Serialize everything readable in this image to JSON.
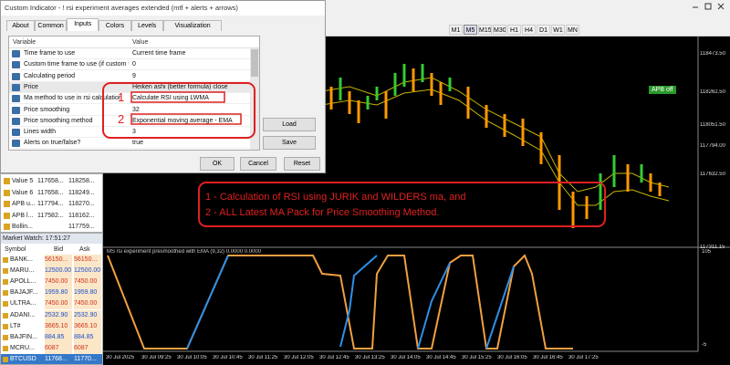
{
  "dialog": {
    "title": "Custom Indicator - ! rsi experiment averages extended (mtf + alerts + arrows)",
    "tabs": [
      "About",
      "Common",
      "Inputs",
      "Colors",
      "Levels",
      "Visualization"
    ],
    "columns": [
      "Variable",
      "Value"
    ],
    "rows": [
      [
        "Time frame to use",
        "Current time frame"
      ],
      [
        "Custom time frame to use (if custom tim...",
        "0"
      ],
      [
        "Calculating period",
        "9"
      ],
      [
        "Price",
        "Heiken ashi (better formula) close"
      ],
      [
        "Ma method to use in rsi calculation",
        "Calculate RSI using LWMA"
      ],
      [
        "Price smoothing",
        "32"
      ],
      [
        "Price smoothing method",
        "Exponential moving average - EMA"
      ],
      [
        "Lines width",
        "3"
      ],
      [
        "Alerts on true/false?",
        "true"
      ]
    ],
    "markers": [
      "1",
      "2"
    ],
    "side_buttons": [
      "Load",
      "Save"
    ],
    "bottom_buttons": [
      "OK",
      "Cancel",
      "Reset"
    ]
  },
  "data_window": {
    "rows": [
      [
        "Value 5",
        "117658...",
        "118258..."
      ],
      [
        "Value 6",
        "117658...",
        "118249..."
      ],
      [
        "APB u...",
        "117794...",
        "118270..."
      ],
      [
        "APB l...",
        "117582...",
        "118162..."
      ],
      [
        "Bollin...",
        "",
        "117759..."
      ]
    ]
  },
  "market_watch": {
    "title": "Market Watch: 17:51:27",
    "columns": [
      "Symbol",
      "Bid",
      "Ask"
    ],
    "rows": [
      [
        "BANK...",
        "56150...",
        "56150..."
      ],
      [
        "MARU...",
        "12500.00",
        "12500.00"
      ],
      [
        "APOLL...",
        "7450.00",
        "7450.00"
      ],
      [
        "BAJAJF...",
        "1959.80",
        "1959.80"
      ],
      [
        "ULTRA...",
        "7450.00",
        "7450.00"
      ],
      [
        "ADANI...",
        "2532.90",
        "2532.90"
      ],
      [
        "LT#",
        "3665.10",
        "3665.10"
      ],
      [
        "BAJFIN...",
        "884.85",
        "884.85"
      ],
      [
        "MCRU...",
        "6087",
        "6087"
      ],
      [
        "BTCUSD",
        "11768...",
        "11770..."
      ]
    ]
  },
  "toolbar": {
    "timeframes": [
      "M1",
      "M5",
      "M15",
      "M30",
      "H1",
      "H4",
      "D1",
      "W1",
      "MN"
    ]
  },
  "chart": {
    "price_labels": [
      "118473.50",
      "118262.50",
      "118051.50",
      "117794.00",
      "117632.50",
      "117311.15"
    ],
    "badge": "APB off",
    "annotation": [
      "1 - Calculation of RSI using JURIK and WILDERS ma, and",
      "2 - ALL Latest MA Pack for Price Smoothing Method."
    ],
    "indicator_title": "MS rsi experiment presmoothed with EMA (9,32) 0.0000 0.0000",
    "indicator_labels": [
      "105",
      "-5"
    ],
    "time_labels": [
      "30 Jul 2025",
      "30 Jul 09:25",
      "30 Jul 10:05",
      "30 Jul 10:45",
      "30 Jul 11:25",
      "30 Jul 12:05",
      "30 Jul 12:45",
      "30 Jul 13:25",
      "30 Jul 14:05",
      "30 Jul 14:45",
      "30 Jul 15:25",
      "30 Jul 16:05",
      "30 Jul 16:45",
      "30 Jul 17:25"
    ]
  }
}
